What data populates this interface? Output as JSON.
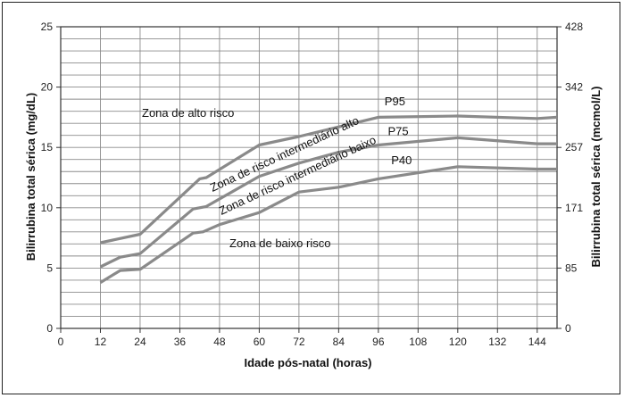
{
  "chart_data": {
    "type": "line",
    "xlabel": "Idade pós-natal (horas)",
    "ylabel": "Bilirrubina total sérica (mg/dL)",
    "y2label": "Bilirrubina total sérica  (mcmol/L)",
    "xlim": [
      0,
      150
    ],
    "ylim": [
      0,
      25
    ],
    "xticks": [
      "0",
      "12",
      "24",
      "36",
      "48",
      "60",
      "72",
      "84",
      "96",
      "108",
      "120",
      "132",
      "144"
    ],
    "yticks": [
      "0",
      "5",
      "10",
      "15",
      "20",
      "25"
    ],
    "y2ticks": [
      "0",
      "85",
      "171",
      "257",
      "342",
      "428"
    ],
    "grid": true,
    "series": [
      {
        "name": "P95",
        "color": "#8a8a8a",
        "points": [
          [
            12,
            7.1
          ],
          [
            24,
            7.8
          ],
          [
            42,
            12.4
          ],
          [
            44,
            12.5
          ],
          [
            60,
            15.2
          ],
          [
            72,
            15.9
          ],
          [
            84,
            16.7
          ],
          [
            96,
            17.5
          ],
          [
            120,
            17.6
          ],
          [
            144,
            17.4
          ],
          [
            150,
            17.5
          ]
        ]
      },
      {
        "name": "P75",
        "color": "#8a8a8a",
        "points": [
          [
            12,
            5.1
          ],
          [
            18,
            5.9
          ],
          [
            24,
            6.2
          ],
          [
            40,
            9.9
          ],
          [
            44,
            10.1
          ],
          [
            60,
            12.6
          ],
          [
            72,
            13.7
          ],
          [
            84,
            14.6
          ],
          [
            96,
            15.2
          ],
          [
            120,
            15.8
          ],
          [
            144,
            15.3
          ],
          [
            150,
            15.3
          ]
        ]
      },
      {
        "name": "P40",
        "color": "#8a8a8a",
        "points": [
          [
            12,
            3.8
          ],
          [
            18,
            4.8
          ],
          [
            24,
            4.9
          ],
          [
            40,
            7.9
          ],
          [
            43,
            8.0
          ],
          [
            48,
            8.6
          ],
          [
            60,
            9.6
          ],
          [
            72,
            11.3
          ],
          [
            84,
            11.7
          ],
          [
            96,
            12.4
          ],
          [
            120,
            13.4
          ],
          [
            144,
            13.2
          ],
          [
            150,
            13.2
          ]
        ]
      }
    ],
    "zones": [
      {
        "label": "Zona de alto risco"
      },
      {
        "label": "Zona de risco intermediário alto"
      },
      {
        "label": "Zona de risco intermediário baixo"
      },
      {
        "label": "Zona de baixo risco"
      }
    ]
  }
}
